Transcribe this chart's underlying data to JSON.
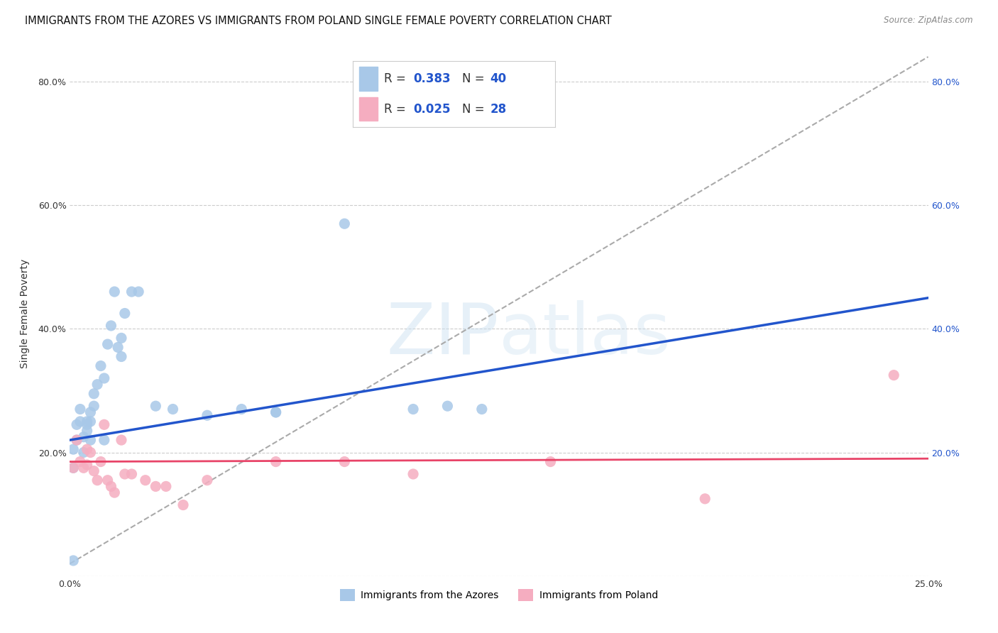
{
  "title": "IMMIGRANTS FROM THE AZORES VS IMMIGRANTS FROM POLAND SINGLE FEMALE POVERTY CORRELATION CHART",
  "source": "Source: ZipAtlas.com",
  "ylabel": "Single Female Poverty",
  "xlim": [
    0.0,
    0.25
  ],
  "ylim": [
    0.0,
    0.85
  ],
  "azores_R": 0.383,
  "azores_N": 40,
  "poland_R": 0.025,
  "poland_N": 28,
  "azores_color": "#a8c8e8",
  "poland_color": "#f5adc0",
  "azores_line_color": "#2255cc",
  "poland_line_color": "#e84468",
  "background_color": "#ffffff",
  "watermark_text": "ZIPatlas",
  "azores_x": [
    0.001,
    0.001,
    0.002,
    0.002,
    0.003,
    0.003,
    0.004,
    0.004,
    0.005,
    0.005,
    0.005,
    0.006,
    0.006,
    0.006,
    0.007,
    0.007,
    0.008,
    0.009,
    0.01,
    0.01,
    0.011,
    0.012,
    0.013,
    0.014,
    0.015,
    0.015,
    0.016,
    0.018,
    0.02,
    0.025,
    0.03,
    0.04,
    0.05,
    0.06,
    0.06,
    0.08,
    0.1,
    0.11,
    0.12,
    0.001
  ],
  "azores_y": [
    0.175,
    0.205,
    0.22,
    0.245,
    0.25,
    0.27,
    0.2,
    0.225,
    0.25,
    0.235,
    0.245,
    0.25,
    0.265,
    0.22,
    0.275,
    0.295,
    0.31,
    0.34,
    0.32,
    0.22,
    0.375,
    0.405,
    0.46,
    0.37,
    0.355,
    0.385,
    0.425,
    0.46,
    0.46,
    0.275,
    0.27,
    0.26,
    0.27,
    0.265,
    0.265,
    0.57,
    0.27,
    0.275,
    0.27,
    0.025
  ],
  "poland_x": [
    0.001,
    0.002,
    0.003,
    0.004,
    0.005,
    0.005,
    0.006,
    0.007,
    0.008,
    0.009,
    0.01,
    0.011,
    0.012,
    0.013,
    0.015,
    0.016,
    0.018,
    0.022,
    0.025,
    0.028,
    0.033,
    0.04,
    0.06,
    0.08,
    0.1,
    0.14,
    0.185,
    0.24
  ],
  "poland_y": [
    0.175,
    0.22,
    0.185,
    0.175,
    0.18,
    0.205,
    0.2,
    0.17,
    0.155,
    0.185,
    0.245,
    0.155,
    0.145,
    0.135,
    0.22,
    0.165,
    0.165,
    0.155,
    0.145,
    0.145,
    0.115,
    0.155,
    0.185,
    0.185,
    0.165,
    0.185,
    0.125,
    0.325
  ],
  "title_fontsize": 10.5,
  "axis_fontsize": 10,
  "tick_fontsize": 9,
  "legend_fontsize": 12
}
